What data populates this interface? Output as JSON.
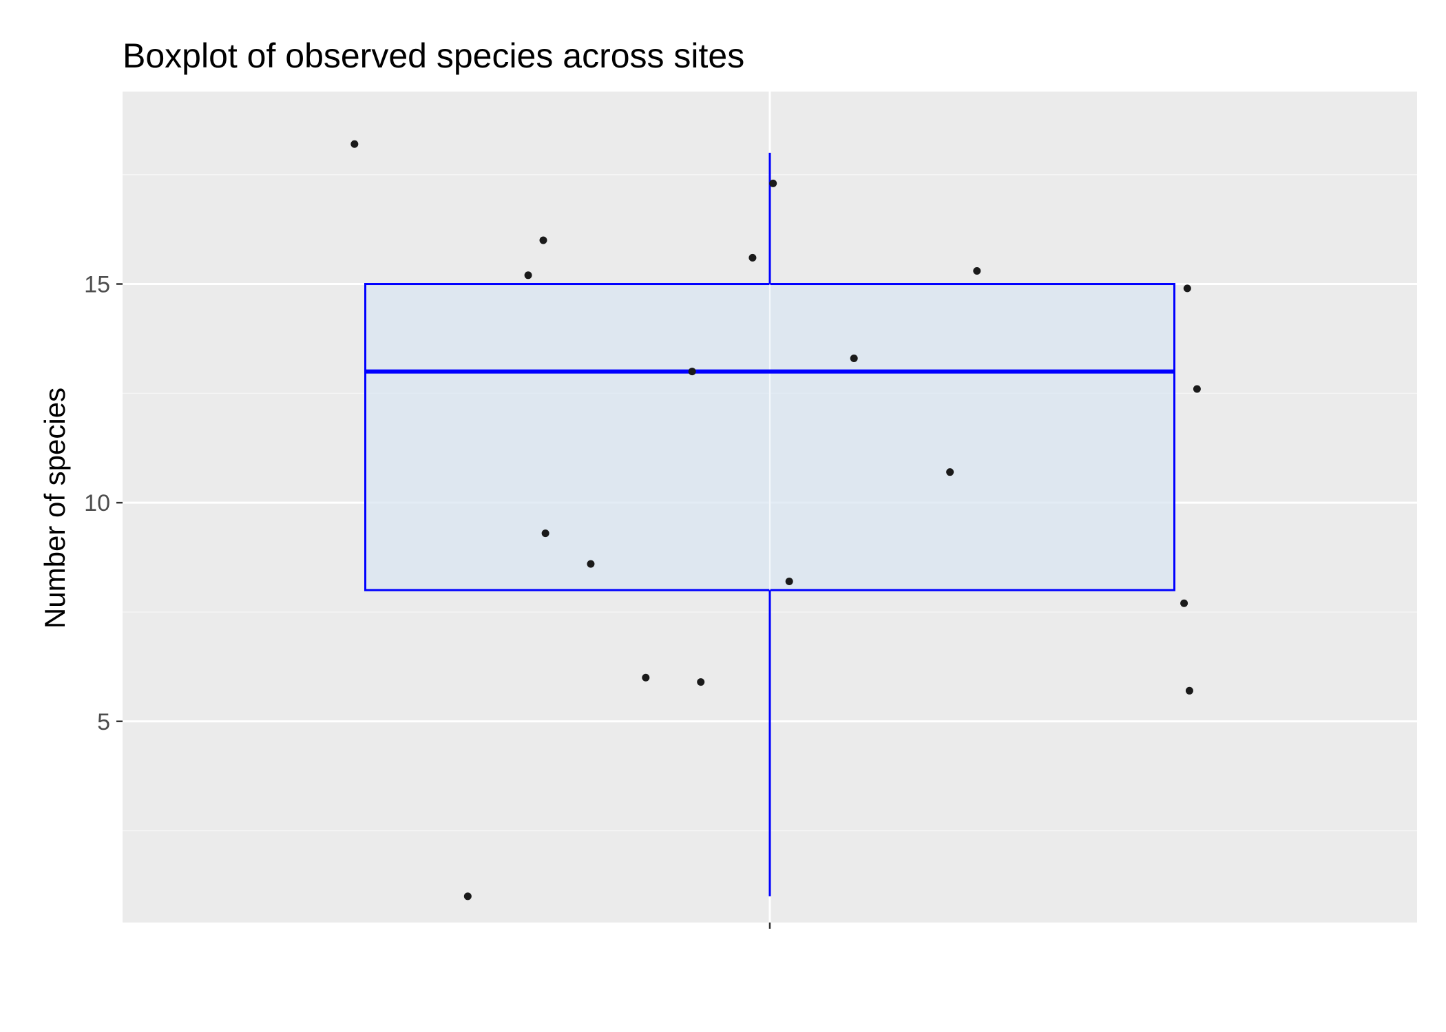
{
  "chart_data": {
    "type": "box",
    "title": "Boxplot of observed species across sites",
    "xlabel": "",
    "ylabel": "Number of species",
    "ylim": [
      0.4,
      19.4
    ],
    "y_ticks": [
      5,
      10,
      15
    ],
    "y_minor_ticks": [
      2.5,
      7.5,
      12.5,
      17.5
    ],
    "x_ticks": [
      ""
    ],
    "grid": true,
    "legend": "none",
    "box": {
      "min": 1,
      "q1": 8,
      "median": 13,
      "q3": 15,
      "max": 18,
      "outliers": []
    },
    "points": [
      {
        "x": 0.615,
        "y": 18.2
      },
      {
        "x": 0.72,
        "y": 1.0
      },
      {
        "x": 0.776,
        "y": 15.2
      },
      {
        "x": 0.79,
        "y": 16.0
      },
      {
        "x": 0.792,
        "y": 9.3
      },
      {
        "x": 0.834,
        "y": 8.6
      },
      {
        "x": 0.885,
        "y": 6.0
      },
      {
        "x": 0.928,
        "y": 13.0
      },
      {
        "x": 0.936,
        "y": 5.9
      },
      {
        "x": 0.984,
        "y": 15.6
      },
      {
        "x": 1.003,
        "y": 17.3
      },
      {
        "x": 1.018,
        "y": 8.2
      },
      {
        "x": 1.078,
        "y": 13.3
      },
      {
        "x": 1.167,
        "y": 10.7
      },
      {
        "x": 1.192,
        "y": 15.3
      },
      {
        "x": 1.384,
        "y": 7.7
      },
      {
        "x": 1.387,
        "y": 14.9
      },
      {
        "x": 1.389,
        "y": 5.7
      },
      {
        "x": 1.396,
        "y": 12.6
      }
    ],
    "colors": {
      "panel_background": "#ebebeb",
      "grid_major": "#ffffff",
      "grid_minor": "#f5f5f5",
      "box_outline": "#0000ff",
      "box_fill": "#d9e6f2",
      "points": "#1a1a1a"
    }
  }
}
